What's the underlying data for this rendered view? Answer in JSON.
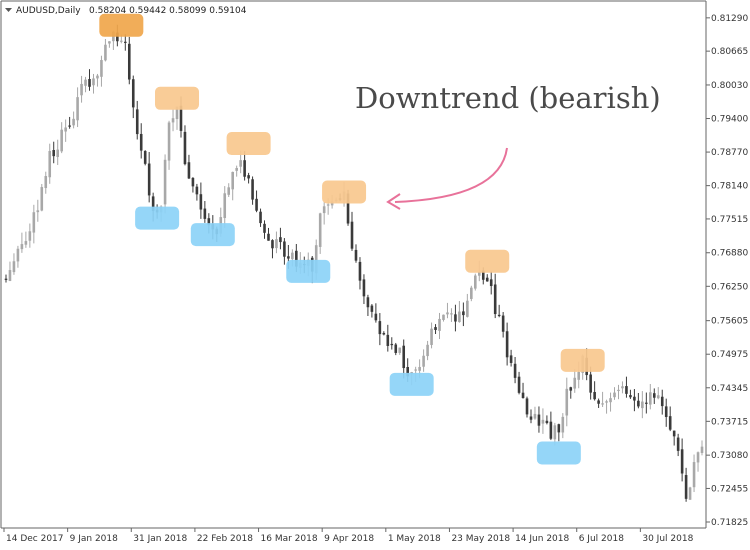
{
  "header": {
    "symbol": "AUDUSD,Daily",
    "ohlc": "0.58204 0.59442 0.58099 0.59104"
  },
  "annotation": {
    "text": "Downtrend (bearish)"
  },
  "colors": {
    "candle_up": "#a8a8a8",
    "candle_down": "#3a3a3a",
    "swing_high_top": "#f0a64b",
    "swing_high": "#f9c88e",
    "swing_low": "#8cd2f7",
    "arrow": "#e8729a",
    "axis": "#666666"
  },
  "chart_data": {
    "type": "candlestick",
    "symbol": "AUDUSD",
    "timeframe": "Daily",
    "y_range": [
      0.7175,
      0.8155
    ],
    "y_ticks": [
      "0.81290",
      "0.80665",
      "0.80030",
      "0.79400",
      "0.78770",
      "0.78140",
      "0.77515",
      "0.76880",
      "0.76250",
      "0.75605",
      "0.74975",
      "0.74345",
      "0.73715",
      "0.73080",
      "0.72455",
      "0.71825"
    ],
    "x_labels": [
      "14 Dec 2017",
      "9 Jan 2018",
      "31 Jan 2018",
      "22 Feb 2018",
      "16 Mar 2018",
      "9 Apr 2018",
      "1 May 2018",
      "23 May 2018",
      "14 Jun 2018",
      "6 Jul 2018",
      "30 Jul 2018"
    ],
    "x_label_bar_index": [
      0,
      16,
      32,
      48,
      64,
      80,
      96,
      112,
      128,
      144,
      160
    ],
    "bar_count": 176,
    "price_path": [
      [
        0,
        0.764
      ],
      [
        4,
        0.769
      ],
      [
        8,
        0.775
      ],
      [
        12,
        0.787
      ],
      [
        16,
        0.792
      ],
      [
        20,
        0.799
      ],
      [
        24,
        0.803
      ],
      [
        28,
        0.81
      ],
      [
        31,
        0.807
      ],
      [
        34,
        0.792
      ],
      [
        38,
        0.777
      ],
      [
        40,
        0.778
      ],
      [
        42,
        0.792
      ],
      [
        44,
        0.796
      ],
      [
        46,
        0.786
      ],
      [
        48,
        0.782
      ],
      [
        52,
        0.774
      ],
      [
        54,
        0.773
      ],
      [
        56,
        0.78
      ],
      [
        58,
        0.785
      ],
      [
        60,
        0.787
      ],
      [
        64,
        0.776
      ],
      [
        68,
        0.769
      ],
      [
        70,
        0.771
      ],
      [
        72,
        0.768
      ],
      [
        76,
        0.766
      ],
      [
        78,
        0.766
      ],
      [
        80,
        0.775
      ],
      [
        84,
        0.779
      ],
      [
        86,
        0.779
      ],
      [
        88,
        0.771
      ],
      [
        92,
        0.758
      ],
      [
        96,
        0.752
      ],
      [
        100,
        0.751
      ],
      [
        102,
        0.744
      ],
      [
        104,
        0.746
      ],
      [
        108,
        0.754
      ],
      [
        112,
        0.757
      ],
      [
        116,
        0.756
      ],
      [
        120,
        0.766
      ],
      [
        122,
        0.764
      ],
      [
        124,
        0.758
      ],
      [
        128,
        0.748
      ],
      [
        132,
        0.739
      ],
      [
        136,
        0.736
      ],
      [
        138,
        0.735
      ],
      [
        140,
        0.735
      ],
      [
        142,
        0.742
      ],
      [
        144,
        0.745
      ],
      [
        146,
        0.748
      ],
      [
        148,
        0.743
      ],
      [
        152,
        0.741
      ],
      [
        156,
        0.743
      ],
      [
        160,
        0.741
      ],
      [
        164,
        0.743
      ],
      [
        166,
        0.741
      ],
      [
        168,
        0.736
      ],
      [
        171,
        0.728
      ],
      [
        172,
        0.724
      ],
      [
        174,
        0.728
      ],
      [
        175,
        0.731
      ]
    ],
    "swing_highs": [
      {
        "bar": 29,
        "price": 0.8115,
        "style": "strong"
      },
      {
        "bar": 43,
        "price": 0.7978
      },
      {
        "bar": 61,
        "price": 0.7893
      },
      {
        "bar": 85,
        "price": 0.7802
      },
      {
        "bar": 121,
        "price": 0.7672
      },
      {
        "bar": 145,
        "price": 0.7486
      }
    ],
    "swing_lows": [
      {
        "bar": 38,
        "price": 0.7753
      },
      {
        "bar": 52,
        "price": 0.7722
      },
      {
        "bar": 76,
        "price": 0.7653
      },
      {
        "bar": 102,
        "price": 0.7441
      },
      {
        "bar": 139,
        "price": 0.7312
      }
    ]
  }
}
